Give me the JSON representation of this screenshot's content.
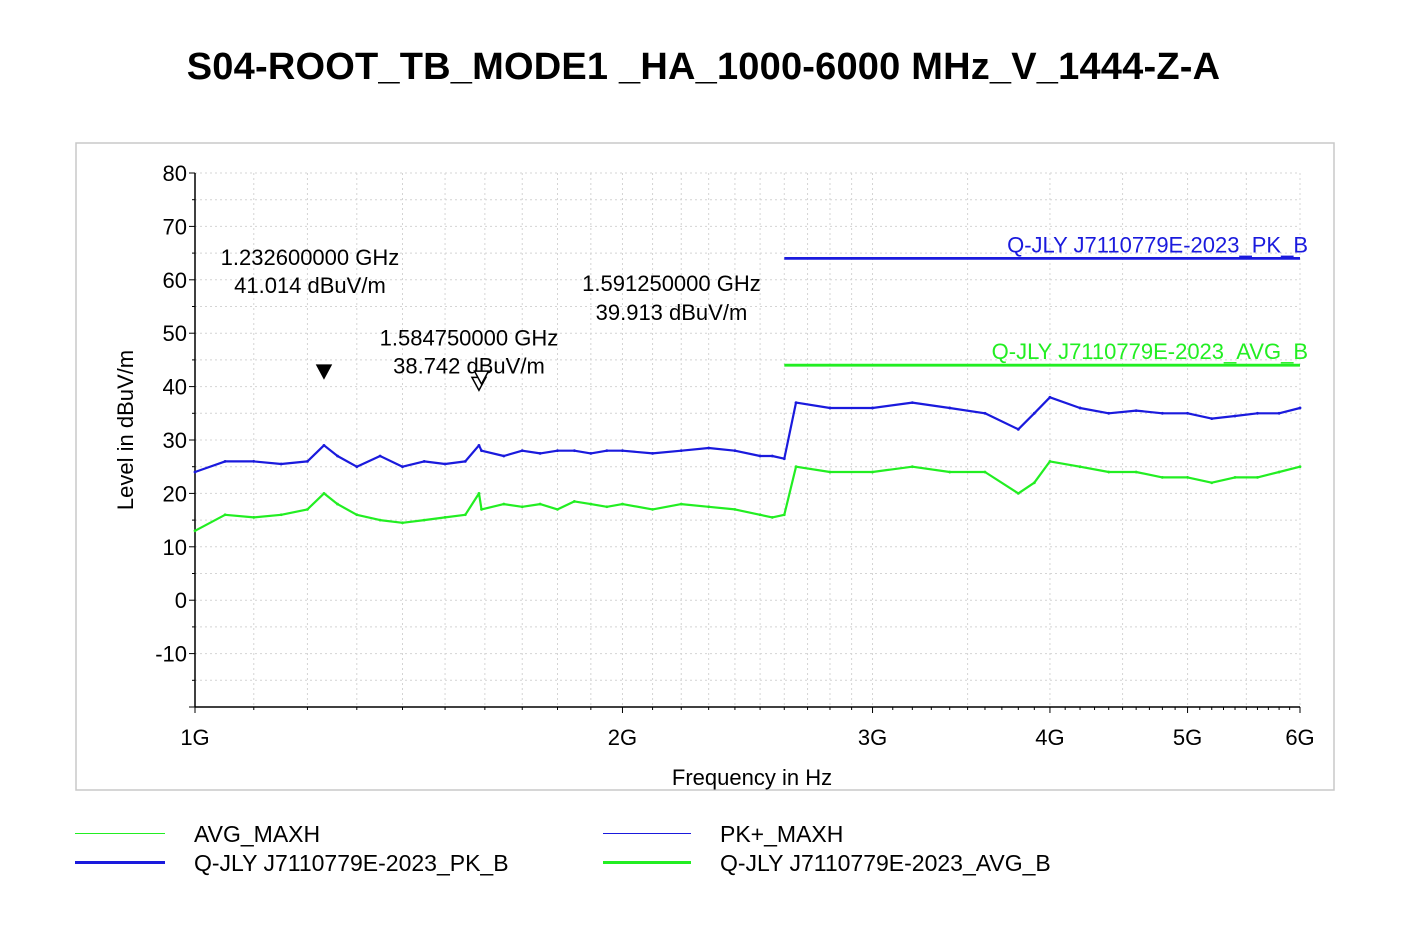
{
  "chart_data": {
    "type": "line",
    "title": "S04-ROOT_TB_MODE1 _HA_1000-6000 MHz_V_1444-Z-A",
    "xlabel": "Frequency in Hz",
    "ylabel": "Level in dBuV/m",
    "x_scale": "log",
    "xlim": [
      1000000000,
      6000000000
    ],
    "ylim": [
      -20,
      80
    ],
    "grid": true,
    "legend_position": "bottom",
    "x_ticks": [
      {
        "value": 1000000000,
        "label": "1G"
      },
      {
        "value": 2000000000,
        "label": "2G"
      },
      {
        "value": 3000000000,
        "label": "3G"
      },
      {
        "value": 4000000000,
        "label": "4G"
      },
      {
        "value": 5000000000,
        "label": "5G"
      },
      {
        "value": 6000000000,
        "label": "6G"
      }
    ],
    "y_ticks": [
      80,
      70,
      60,
      50,
      40,
      30,
      20,
      10,
      0,
      -10
    ],
    "series": [
      {
        "name": "AVG_MAXH",
        "color": "#22ee22",
        "style": "thin",
        "x": [
          1000000000,
          1050000000,
          1100000000,
          1150000000,
          1200000000,
          1232600000,
          1260000000,
          1300000000,
          1350000000,
          1400000000,
          1450000000,
          1500000000,
          1550000000,
          1584750000,
          1591250000,
          1650000000,
          1700000000,
          1750000000,
          1800000000,
          1850000000,
          1900000000,
          1950000000,
          2000000000,
          2100000000,
          2200000000,
          2300000000,
          2400000000,
          2500000000,
          2550000000,
          2600000000,
          2650000000,
          2800000000,
          3000000000,
          3200000000,
          3400000000,
          3600000000,
          3800000000,
          3900000000,
          4000000000,
          4200000000,
          4400000000,
          4600000000,
          4800000000,
          5000000000,
          5200000000,
          5400000000,
          5600000000,
          5800000000,
          6000000000
        ],
        "y": [
          13,
          16,
          15.5,
          16,
          17,
          20,
          18,
          16,
          15,
          14.5,
          15,
          15.5,
          16,
          20,
          17,
          18,
          17.5,
          18,
          17,
          18.5,
          18,
          17.5,
          18,
          17,
          18,
          17.5,
          17,
          16,
          15.5,
          16,
          25,
          24,
          24,
          25,
          24,
          24,
          20,
          22,
          26,
          25,
          24,
          24,
          23,
          23,
          22,
          23,
          23,
          24,
          25
        ]
      },
      {
        "name": "PK+_MAXH",
        "color": "#1a1add",
        "style": "thin",
        "x": [
          1000000000,
          1050000000,
          1100000000,
          1150000000,
          1200000000,
          1232600000,
          1260000000,
          1300000000,
          1350000000,
          1400000000,
          1450000000,
          1500000000,
          1550000000,
          1584750000,
          1591250000,
          1650000000,
          1700000000,
          1750000000,
          1800000000,
          1850000000,
          1900000000,
          1950000000,
          2000000000,
          2100000000,
          2200000000,
          2300000000,
          2400000000,
          2500000000,
          2550000000,
          2600000000,
          2650000000,
          2800000000,
          3000000000,
          3200000000,
          3400000000,
          3600000000,
          3800000000,
          3900000000,
          4000000000,
          4200000000,
          4400000000,
          4600000000,
          4800000000,
          5000000000,
          5200000000,
          5400000000,
          5600000000,
          5800000000,
          6000000000
        ],
        "y": [
          24,
          26,
          26,
          25.5,
          26,
          29,
          27,
          25,
          27,
          25,
          26,
          25.5,
          26,
          29,
          28,
          27,
          28,
          27.5,
          28,
          28,
          27.5,
          28,
          28,
          27.5,
          28,
          28.5,
          28,
          27,
          27,
          26.5,
          37,
          36,
          36,
          37,
          36,
          35,
          32,
          35,
          38,
          36,
          35,
          35.5,
          35,
          35,
          34,
          34.5,
          35,
          35,
          36
        ]
      },
      {
        "name": "Q-JLY J7110779E-2023_PK_B",
        "color": "#1a1add",
        "style": "thick",
        "x": [
          1000000000,
          2600000000,
          2600000000,
          6000000000
        ],
        "y": [
          null,
          null,
          64,
          64
        ]
      },
      {
        "name": "Q-JLY J7110779E-2023_AVG_B",
        "color": "#22ee22",
        "style": "thick",
        "x": [
          1000000000,
          2600000000,
          2600000000,
          6000000000
        ],
        "y": [
          null,
          null,
          44,
          44
        ]
      }
    ],
    "markers": [
      {
        "x": 1232600000,
        "y": 41.014,
        "symbol": "filled-triangle",
        "freq_label": "1.232600000 GHz",
        "level_label": "41.014 dBuV/m"
      },
      {
        "x": 1584750000,
        "y": 38.742,
        "symbol": "open-triangle",
        "freq_label": "1.584750000 GHz",
        "level_label": "38.742 dBuV/m"
      },
      {
        "x": 1591250000,
        "y": 39.913,
        "symbol": "open-triangle",
        "freq_label": "1.591250000 GHz",
        "level_label": "39.913 dBuV/m"
      }
    ],
    "line_labels": [
      {
        "text": "Q-JLY J7110779E-2023_PK_B",
        "color": "#1a1add"
      },
      {
        "text": "Q-JLY J7110779E-2023_AVG_B",
        "color": "#22ee22"
      }
    ],
    "legend": [
      {
        "label": "AVG_MAXH",
        "color": "#22ee22",
        "style": "thin"
      },
      {
        "label": "PK+_MAXH",
        "color": "#1a1add",
        "style": "thin"
      },
      {
        "label": "Q-JLY J7110779E-2023_PK_B",
        "color": "#1a1add",
        "style": "thick"
      },
      {
        "label": "Q-JLY J7110779E-2023_AVG_B",
        "color": "#22ee22",
        "style": "thick"
      }
    ]
  }
}
